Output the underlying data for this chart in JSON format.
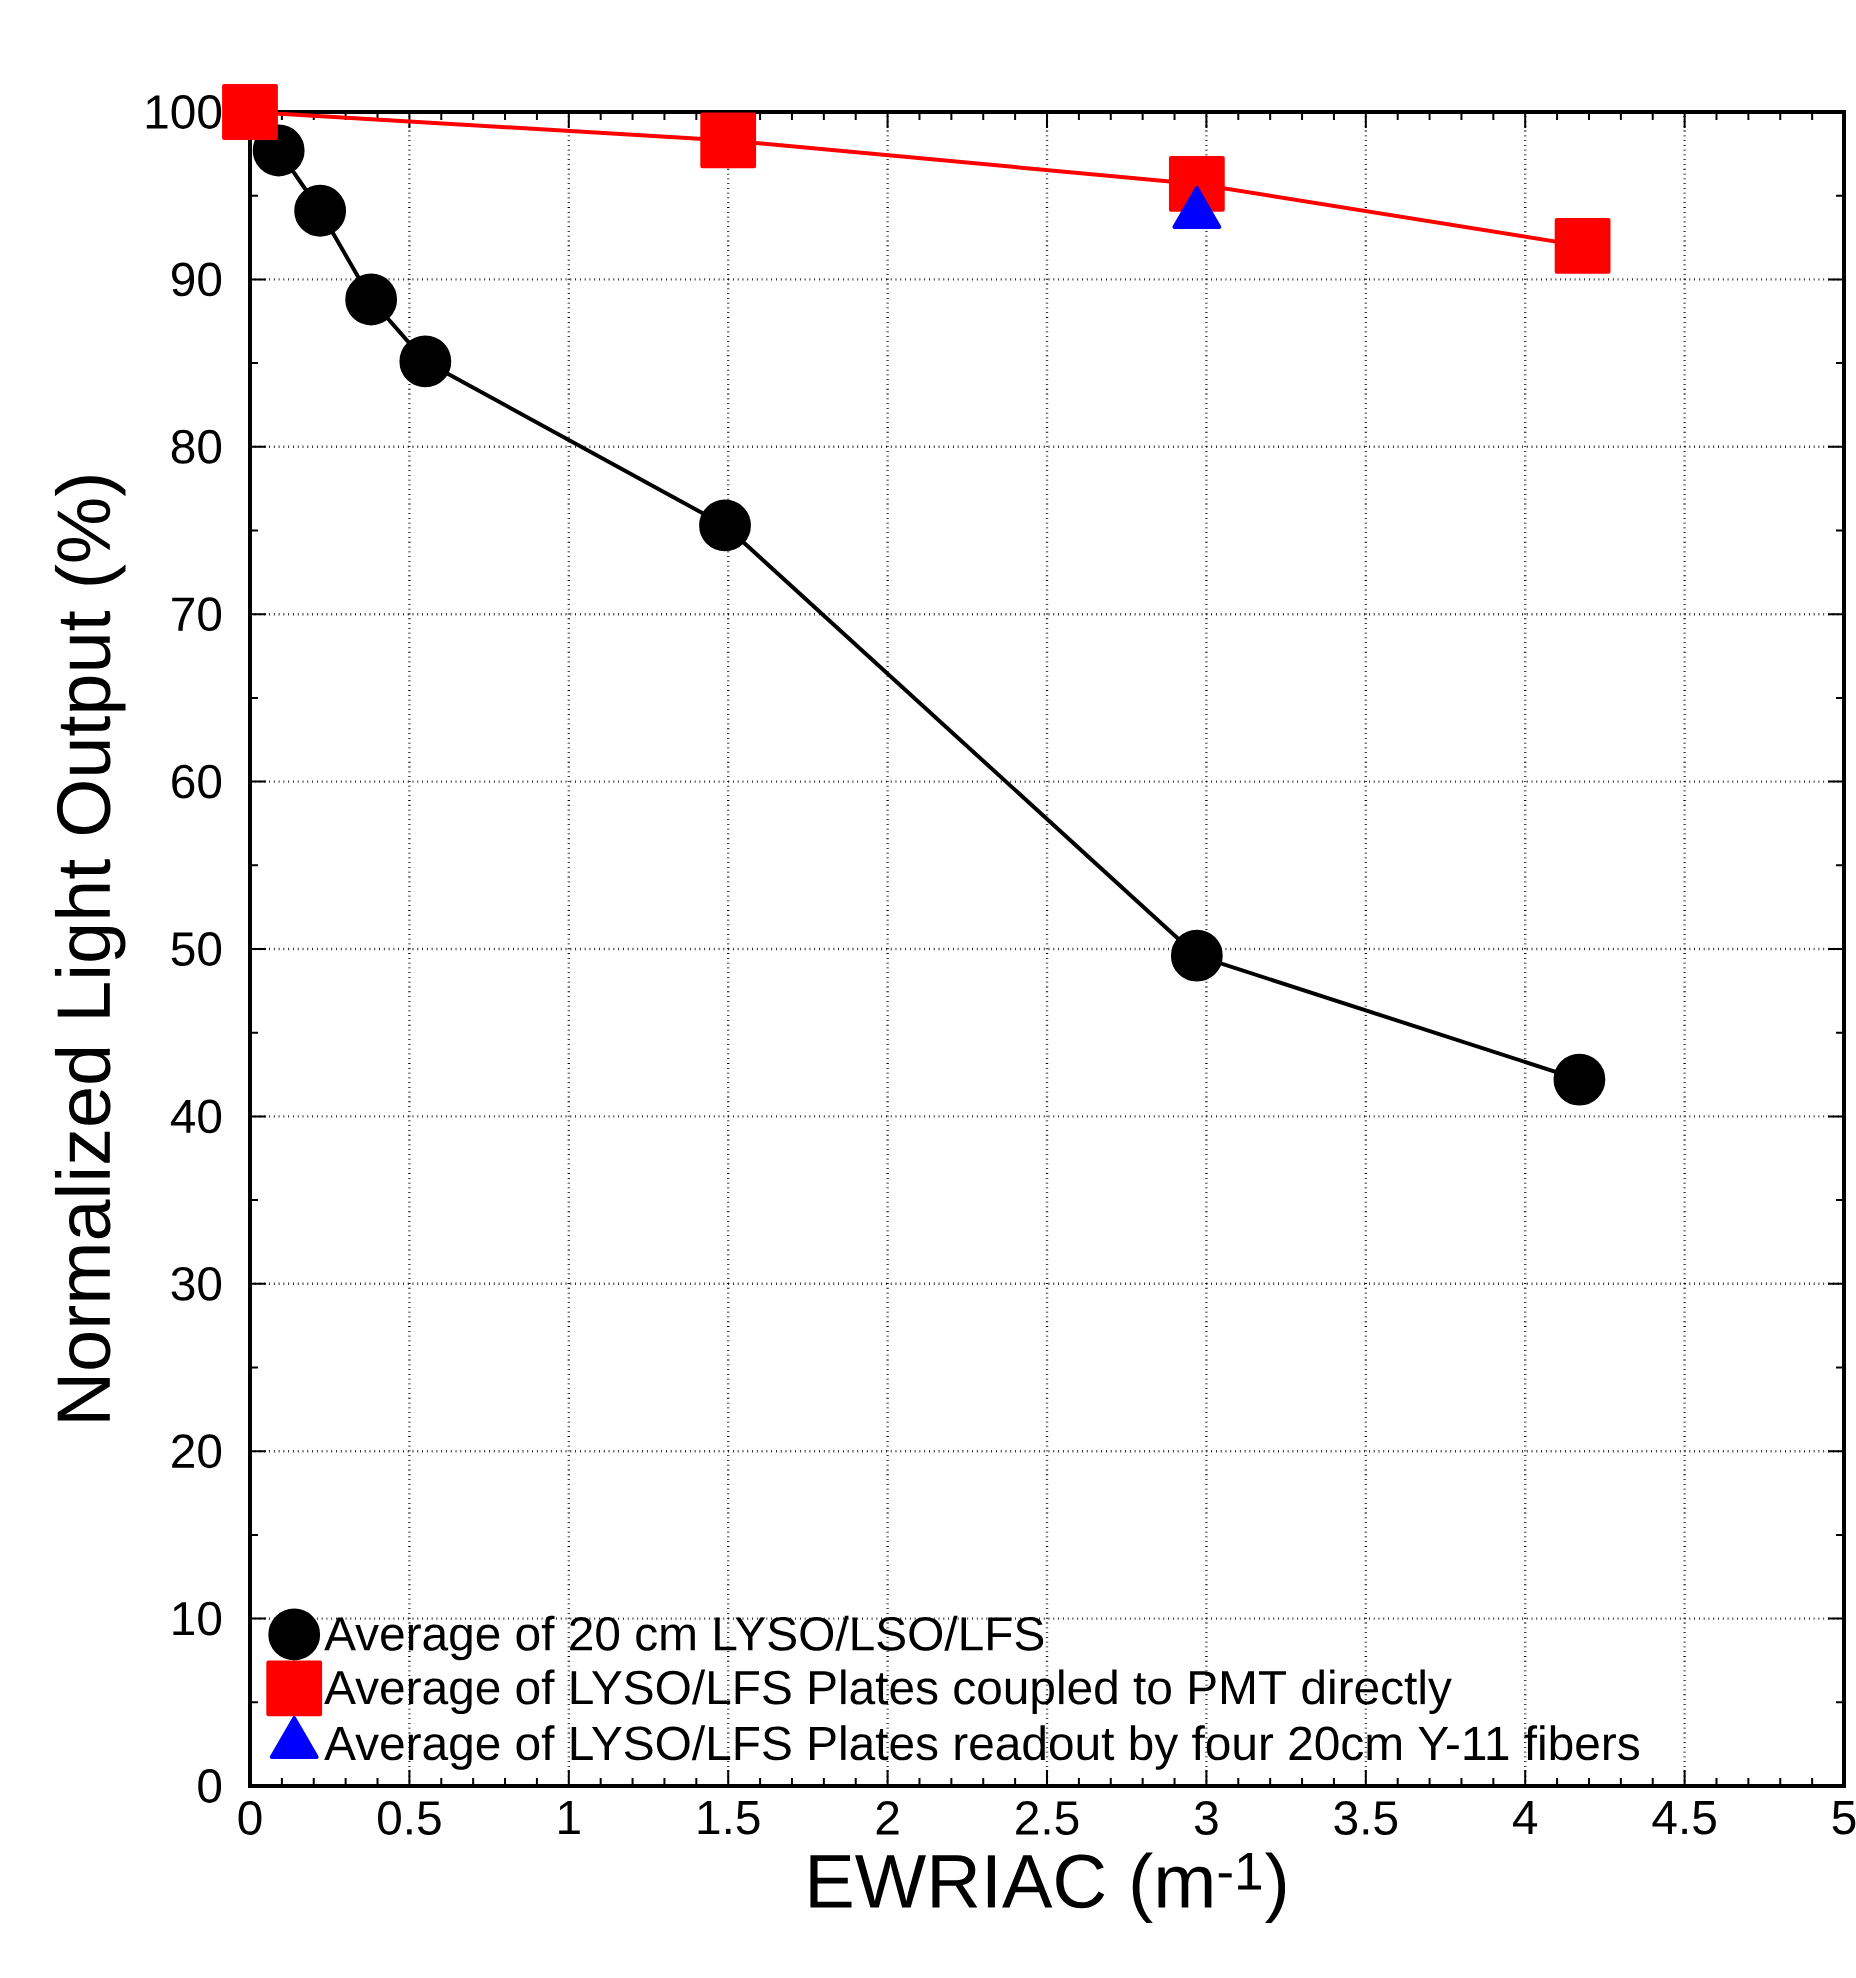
{
  "chart_data": {
    "type": "line",
    "xlabel": "EWRIAC (m$^{-1}$)",
    "ylabel": "Normalized Light Output (%)",
    "xlim": [
      0,
      5
    ],
    "ylim": [
      0,
      100
    ],
    "xticks": [
      0,
      0.5,
      1,
      1.5,
      2,
      2.5,
      3,
      3.5,
      4,
      4.5,
      5
    ],
    "yticks": [
      0,
      10,
      20,
      30,
      40,
      50,
      60,
      70,
      80,
      90,
      100
    ],
    "grid": true,
    "legend": "bottom left",
    "series": [
      {
        "name": "Average of 20 cm LYSO/LSO/LFS",
        "marker": "circle",
        "color": "#000000",
        "x": [
          0.09,
          0.22,
          0.38,
          0.55,
          1.49,
          2.97,
          4.17
        ],
        "values": [
          97.7,
          94.1,
          88.8,
          85.1,
          75.3,
          49.6,
          42.2
        ]
      },
      {
        "name": "Average of LYSO/LFS Plates coupled to PMT directly",
        "marker": "square",
        "color": "#ff0000",
        "x": [
          0,
          1.5,
          2.97,
          4.18
        ],
        "values": [
          100,
          98.3,
          95.7,
          92.0
        ]
      },
      {
        "name": "Average of LYSO/LFS Plates readout by four 20cm Y-11 fibers",
        "type": "scatter",
        "marker": "triangle",
        "color": "#0000ff",
        "x": [
          2.97
        ],
        "values": [
          93.9
        ]
      }
    ]
  }
}
